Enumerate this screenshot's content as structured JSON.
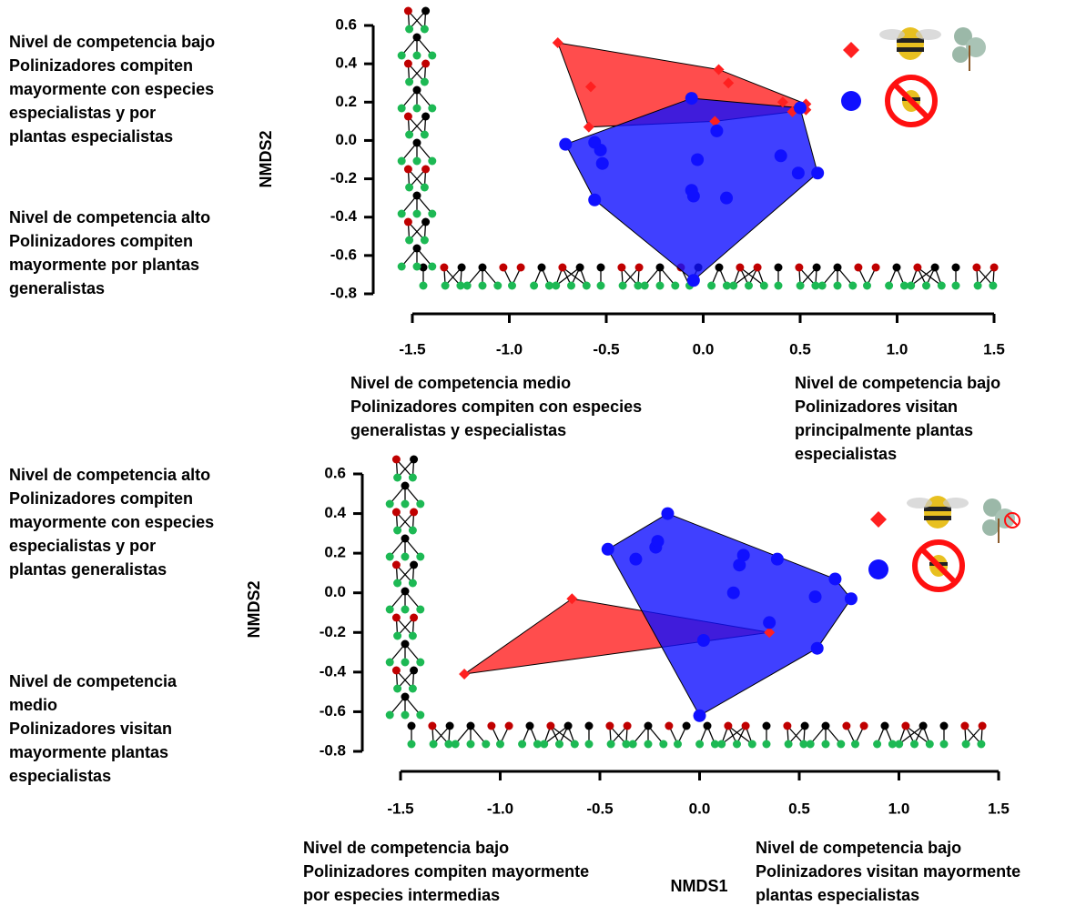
{
  "chart_data": [
    {
      "type": "scatter",
      "y_label": "NMDS2",
      "xlim": [
        -1.5,
        1.5
      ],
      "ylim": [
        -0.8,
        0.6
      ],
      "xticks": [
        -1.5,
        {
          "value": -1,
          "label": "-1.0"
        },
        -0.5,
        {
          "value": 0,
          "label": "0.0"
        },
        0.5,
        {
          "value": 1,
          "label": "1.0"
        },
        1.5
      ],
      "yticks": [
        0.6,
        0.4,
        0.2,
        {
          "value": 0,
          "label": "0.0"
        },
        -0.2,
        -0.4,
        -0.6,
        -0.8
      ],
      "hull": true,
      "annotations": {
        "left_upper": [
          "Nivel de competencia bajo",
          "Polinizadores compiten",
          "mayormente con especies",
          "especialistas y por",
          "plantas especialistas"
        ],
        "left_lower": [
          "Nivel de competencia alto",
          "Polinizadores compiten",
          "mayormente por plantas",
          "generalistas"
        ],
        "below_left": [
          "Nivel de competencia medio",
          "Polinizadores compiten con especies",
          "generalistas y especialistas"
        ],
        "below_right": [
          "Nivel de competencia bajo",
          "Polinizadores visitan",
          "principalmente plantas",
          "especialistas"
        ]
      },
      "series": [
        {
          "color": "#ff2020",
          "marker": "diamond",
          "x": [
            -0.75,
            0.08,
            0.53,
            0.53,
            -0.59,
            -0.58,
            0.13,
            0.41,
            0.46,
            0.06
          ],
          "y": [
            0.51,
            0.37,
            0.19,
            0.16,
            0.07,
            0.28,
            0.3,
            0.2,
            0.15,
            0.1
          ]
        },
        {
          "color": "#1010ff",
          "marker": "circle",
          "x": [
            -0.71,
            -0.06,
            0.5,
            0.59,
            -0.05,
            -0.56,
            -0.53,
            -0.52,
            -0.03,
            -0.06,
            -0.05,
            0.12,
            0.07,
            0.4,
            0.49,
            -0.56
          ],
          "y": [
            -0.02,
            0.22,
            0.17,
            -0.17,
            -0.73,
            -0.31,
            -0.05,
            -0.12,
            -0.1,
            -0.26,
            -0.29,
            -0.3,
            0.05,
            -0.08,
            -0.17,
            -0.01
          ]
        }
      ]
    },
    {
      "type": "scatter",
      "y_label": "NMDS2",
      "x_label": "NMDS1",
      "xlim": [
        -1.5,
        1.5
      ],
      "ylim": [
        -0.8,
        0.6
      ],
      "xticks": [
        -1.5,
        {
          "value": -1,
          "label": "-1.0"
        },
        -0.5,
        {
          "value": 0,
          "label": "0.0"
        },
        0.5,
        {
          "value": 1,
          "label": "1.0"
        },
        1.5
      ],
      "yticks": [
        0.6,
        0.4,
        0.2,
        {
          "value": 0,
          "label": "0.0"
        },
        -0.2,
        -0.4,
        -0.6,
        -0.8
      ],
      "hull": true,
      "annotations": {
        "left_upper": [
          "Nivel de competencia alto",
          "Polinizadores compiten",
          "mayormente con especies",
          "especialistas y por",
          "plantas generalistas"
        ],
        "left_lower": [
          "Nivel de competencia",
          "medio",
          "Polinizadores visitan",
          "mayormente plantas",
          "especialistas"
        ],
        "below_left": [
          "Nivel de competencia bajo",
          "Polinizadores compiten mayormente",
          "por especies intermedias"
        ],
        "below_right": [
          "Nivel de competencia bajo",
          "Polinizadores visitan mayormente",
          "plantas especialistas"
        ]
      },
      "series": [
        {
          "color": "#ff2020",
          "marker": "diamond",
          "x": [
            -0.64,
            -1.18,
            0.35
          ],
          "y": [
            -0.03,
            -0.41,
            -0.2
          ]
        },
        {
          "color": "#1010ff",
          "marker": "circle",
          "x": [
            -0.16,
            -0.46,
            -0.32,
            -0.22,
            -0.21,
            0.22,
            0.2,
            0.39,
            0.17,
            0.58,
            0.02,
            0.35,
            0.59,
            0.68,
            0.76,
            0.0
          ],
          "y": [
            0.4,
            0.22,
            0.17,
            0.23,
            0.26,
            0.19,
            0.14,
            0.17,
            0.0,
            -0.02,
            -0.24,
            -0.15,
            -0.28,
            0.07,
            -0.03,
            -0.62
          ]
        }
      ]
    }
  ]
}
